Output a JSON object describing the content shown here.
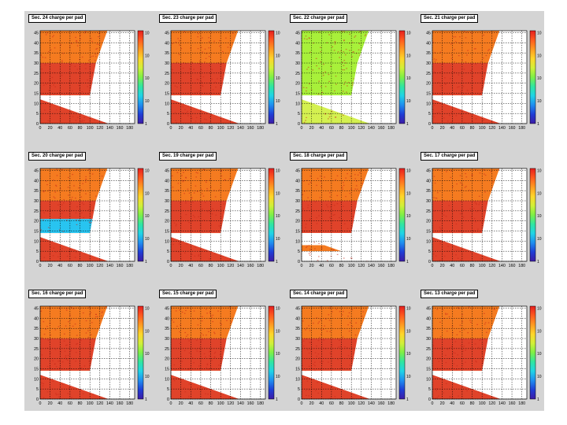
{
  "canvas": {
    "background": "#d4d4d4"
  },
  "colors": {
    "hot": "#e0432a",
    "hot_spec": "#c9281a",
    "orange": "#f57b20",
    "bright_orange": "#ffa640",
    "green": "#a8f03a",
    "green_yellow": "#d4f050",
    "cyan": "#28c4f0",
    "blue": "#1446d0",
    "white": "#ffffff",
    "grid": "#000000"
  },
  "palette_stops": [
    "#3d1ba6",
    "#1f3ed6",
    "#1f8ef0",
    "#20d4e6",
    "#30e6a0",
    "#7ef046",
    "#d2f038",
    "#ffd52a",
    "#ff9a22",
    "#ff5a1f",
    "#e61e1e"
  ],
  "chart_data": [
    {
      "type": "heatmap",
      "title": "Sec. 24 charge per pad",
      "x_ticks": [
        "0",
        "20",
        "40",
        "60",
        "80",
        "100",
        "120",
        "140",
        "160",
        "180"
      ],
      "y_ticks": [
        "0",
        "5",
        "10",
        "15",
        "20",
        "25",
        "30",
        "35",
        "40",
        "45"
      ],
      "xlim": [
        0,
        190
      ],
      "ylim": [
        0,
        46
      ],
      "z_ticks": [
        "1",
        "10",
        "10",
        "10",
        "10"
      ],
      "z_scale": "log",
      "regions": [
        {
          "rows": [
            0,
            12
          ],
          "fill": "hot"
        },
        {
          "rows": [
            12,
            14
          ],
          "fill": "orange"
        },
        {
          "rows": [
            14,
            30
          ],
          "fill": "hot"
        },
        {
          "rows": [
            30,
            46
          ],
          "fill": "orange"
        }
      ]
    },
    {
      "type": "heatmap",
      "title": "Sec. 23 charge per pad",
      "x_ticks": [
        "0",
        "20",
        "40",
        "60",
        "80",
        "100",
        "120",
        "140",
        "160",
        "180"
      ],
      "y_ticks": [
        "0",
        "5",
        "10",
        "15",
        "20",
        "25",
        "30",
        "35",
        "40",
        "45"
      ],
      "xlim": [
        0,
        190
      ],
      "ylim": [
        0,
        46
      ],
      "z_ticks": [
        "1",
        "10",
        "10",
        "10",
        "10"
      ],
      "z_scale": "log",
      "regions": [
        {
          "rows": [
            0,
            12
          ],
          "fill": "hot"
        },
        {
          "rows": [
            12,
            14
          ],
          "fill": "orange"
        },
        {
          "rows": [
            14,
            30
          ],
          "fill": "hot"
        },
        {
          "rows": [
            30,
            46
          ],
          "fill": "orange"
        }
      ]
    },
    {
      "type": "heatmap",
      "title": "Sec. 22 charge per pad",
      "x_ticks": [
        "0",
        "20",
        "40",
        "60",
        "80",
        "100",
        "120",
        "140",
        "160",
        "180"
      ],
      "y_ticks": [
        "0",
        "5",
        "10",
        "15",
        "20",
        "25",
        "30",
        "35",
        "40",
        "45"
      ],
      "xlim": [
        0,
        190
      ],
      "ylim": [
        0,
        46
      ],
      "z_ticks": [
        "1",
        "10",
        "10",
        "10",
        "10"
      ],
      "z_scale": "log",
      "regions": [
        {
          "rows": [
            0,
            12
          ],
          "fill": "green_yellow"
        },
        {
          "rows": [
            12,
            46
          ],
          "fill": "green"
        }
      ]
    },
    {
      "type": "heatmap",
      "title": "Sec. 21 charge per pad",
      "x_ticks": [
        "0",
        "20",
        "40",
        "60",
        "80",
        "100",
        "120",
        "140",
        "160",
        "180"
      ],
      "y_ticks": [
        "0",
        "5",
        "10",
        "15",
        "20",
        "25",
        "30",
        "35",
        "40",
        "45"
      ],
      "xlim": [
        0,
        190
      ],
      "ylim": [
        0,
        46
      ],
      "z_ticks": [
        "1",
        "10",
        "10",
        "10",
        "10"
      ],
      "z_scale": "log",
      "regions": [
        {
          "rows": [
            0,
            12
          ],
          "fill": "hot"
        },
        {
          "rows": [
            12,
            14
          ],
          "fill": "orange"
        },
        {
          "rows": [
            14,
            30
          ],
          "fill": "hot"
        },
        {
          "rows": [
            30,
            46
          ],
          "fill": "orange"
        }
      ]
    },
    {
      "type": "heatmap",
      "title": "Sec. 20 charge per pad",
      "x_ticks": [
        "0",
        "20",
        "40",
        "60",
        "80",
        "100",
        "120",
        "140",
        "160",
        "180"
      ],
      "y_ticks": [
        "0",
        "5",
        "10",
        "15",
        "20",
        "25",
        "30",
        "35",
        "40",
        "45"
      ],
      "xlim": [
        0,
        190
      ],
      "ylim": [
        0,
        46
      ],
      "z_ticks": [
        "1",
        "10",
        "10",
        "10",
        "10"
      ],
      "z_scale": "log",
      "regions": [
        {
          "rows": [
            0,
            12
          ],
          "fill": "hot"
        },
        {
          "rows": [
            12,
            14
          ],
          "fill": "orange"
        },
        {
          "rows": [
            14,
            21
          ],
          "fill": "cyan"
        },
        {
          "rows": [
            21,
            30
          ],
          "fill": "hot"
        },
        {
          "rows": [
            30,
            46
          ],
          "fill": "orange"
        }
      ]
    },
    {
      "type": "heatmap",
      "title": "Sec. 19 charge per pad",
      "x_ticks": [
        "0",
        "20",
        "40",
        "60",
        "80",
        "100",
        "120",
        "140",
        "160",
        "180"
      ],
      "y_ticks": [
        "0",
        "5",
        "10",
        "15",
        "20",
        "25",
        "30",
        "35",
        "40",
        "45"
      ],
      "xlim": [
        0,
        190
      ],
      "ylim": [
        0,
        46
      ],
      "z_ticks": [
        "1",
        "10",
        "10",
        "10",
        "10"
      ],
      "z_scale": "log",
      "regions": [
        {
          "rows": [
            0,
            12
          ],
          "fill": "hot"
        },
        {
          "rows": [
            12,
            14
          ],
          "fill": "orange"
        },
        {
          "rows": [
            14,
            30
          ],
          "fill": "hot"
        },
        {
          "rows": [
            30,
            46
          ],
          "fill": "orange"
        }
      ]
    },
    {
      "type": "heatmap",
      "title": "Sec. 18 charge per pad",
      "x_ticks": [
        "0",
        "20",
        "40",
        "60",
        "80",
        "100",
        "120",
        "140",
        "160",
        "180"
      ],
      "y_ticks": [
        "0",
        "5",
        "10",
        "15",
        "20",
        "25",
        "30",
        "35",
        "40",
        "45"
      ],
      "xlim": [
        0,
        190
      ],
      "ylim": [
        0,
        46
      ],
      "z_ticks": [
        "1",
        "10",
        "10",
        "10",
        "10"
      ],
      "z_scale": "log",
      "regions": [
        {
          "rows": [
            0,
            5
          ],
          "fill": "white"
        },
        {
          "rows": [
            5,
            8
          ],
          "fill": "orange"
        },
        {
          "rows": [
            8,
            12
          ],
          "fill": "white"
        },
        {
          "rows": [
            12,
            14
          ],
          "fill": "white"
        },
        {
          "rows": [
            14,
            30
          ],
          "fill": "hot"
        },
        {
          "rows": [
            30,
            46
          ],
          "fill": "orange"
        }
      ]
    },
    {
      "type": "heatmap",
      "title": "Sec. 17 charge per pad",
      "x_ticks": [
        "0",
        "20",
        "40",
        "60",
        "80",
        "100",
        "120",
        "140",
        "160",
        "180"
      ],
      "y_ticks": [
        "0",
        "5",
        "10",
        "15",
        "20",
        "25",
        "30",
        "35",
        "40",
        "45"
      ],
      "xlim": [
        0,
        190
      ],
      "ylim": [
        0,
        46
      ],
      "z_ticks": [
        "1",
        "10",
        "10",
        "10",
        "10"
      ],
      "z_scale": "log",
      "regions": [
        {
          "rows": [
            0,
            12
          ],
          "fill": "hot"
        },
        {
          "rows": [
            12,
            14
          ],
          "fill": "orange"
        },
        {
          "rows": [
            14,
            30
          ],
          "fill": "hot"
        },
        {
          "rows": [
            30,
            46
          ],
          "fill": "orange"
        }
      ]
    },
    {
      "type": "heatmap",
      "title": "Sec. 16 charge per pad",
      "x_ticks": [
        "0",
        "20",
        "40",
        "60",
        "80",
        "100",
        "120",
        "140",
        "160",
        "180"
      ],
      "y_ticks": [
        "0",
        "5",
        "10",
        "15",
        "20",
        "25",
        "30",
        "35",
        "40",
        "45"
      ],
      "xlim": [
        0,
        190
      ],
      "ylim": [
        0,
        46
      ],
      "z_ticks": [
        "1",
        "10",
        "10",
        "10",
        "10"
      ],
      "z_scale": "log",
      "regions": [
        {
          "rows": [
            0,
            12
          ],
          "fill": "hot"
        },
        {
          "rows": [
            12,
            14
          ],
          "fill": "orange"
        },
        {
          "rows": [
            14,
            30
          ],
          "fill": "hot"
        },
        {
          "rows": [
            30,
            46
          ],
          "fill": "orange"
        }
      ]
    },
    {
      "type": "heatmap",
      "title": "Sec. 15 charge per pad",
      "x_ticks": [
        "0",
        "20",
        "40",
        "60",
        "80",
        "100",
        "120",
        "140",
        "160",
        "180"
      ],
      "y_ticks": [
        "0",
        "5",
        "10",
        "15",
        "20",
        "25",
        "30",
        "35",
        "40",
        "45"
      ],
      "xlim": [
        0,
        190
      ],
      "ylim": [
        0,
        46
      ],
      "z_ticks": [
        "1",
        "10",
        "10",
        "10",
        "10"
      ],
      "z_scale": "log",
      "regions": [
        {
          "rows": [
            0,
            12
          ],
          "fill": "hot"
        },
        {
          "rows": [
            12,
            14
          ],
          "fill": "bright_orange"
        },
        {
          "rows": [
            14,
            30
          ],
          "fill": "hot"
        },
        {
          "rows": [
            30,
            46
          ],
          "fill": "orange"
        }
      ]
    },
    {
      "type": "heatmap",
      "title": "Sec. 14 charge per pad",
      "x_ticks": [
        "0",
        "20",
        "40",
        "60",
        "80",
        "100",
        "120",
        "140",
        "160",
        "180"
      ],
      "y_ticks": [
        "0",
        "5",
        "10",
        "15",
        "20",
        "25",
        "30",
        "35",
        "40",
        "45"
      ],
      "xlim": [
        0,
        190
      ],
      "ylim": [
        0,
        46
      ],
      "z_ticks": [
        "1",
        "10",
        "10",
        "10",
        "10"
      ],
      "z_scale": "log",
      "regions": [
        {
          "rows": [
            0,
            12
          ],
          "fill": "hot"
        },
        {
          "rows": [
            12,
            14
          ],
          "fill": "orange"
        },
        {
          "rows": [
            14,
            30
          ],
          "fill": "hot"
        },
        {
          "rows": [
            30,
            46
          ],
          "fill": "orange"
        }
      ]
    },
    {
      "type": "heatmap",
      "title": "Sec. 13 charge per pad",
      "x_ticks": [
        "0",
        "20",
        "40",
        "60",
        "80",
        "100",
        "120",
        "140",
        "160",
        "180"
      ],
      "y_ticks": [
        "0",
        "5",
        "10",
        "15",
        "20",
        "25",
        "30",
        "35",
        "40",
        "45"
      ],
      "xlim": [
        0,
        190
      ],
      "ylim": [
        0,
        46
      ],
      "z_ticks": [
        "1",
        "10",
        "10",
        "10",
        "10"
      ],
      "z_scale": "log",
      "regions": [
        {
          "rows": [
            0,
            12
          ],
          "fill": "hot"
        },
        {
          "rows": [
            12,
            14
          ],
          "fill": "orange"
        },
        {
          "rows": [
            14,
            30
          ],
          "fill": "hot"
        },
        {
          "rows": [
            30,
            46
          ],
          "fill": "orange"
        }
      ]
    }
  ]
}
